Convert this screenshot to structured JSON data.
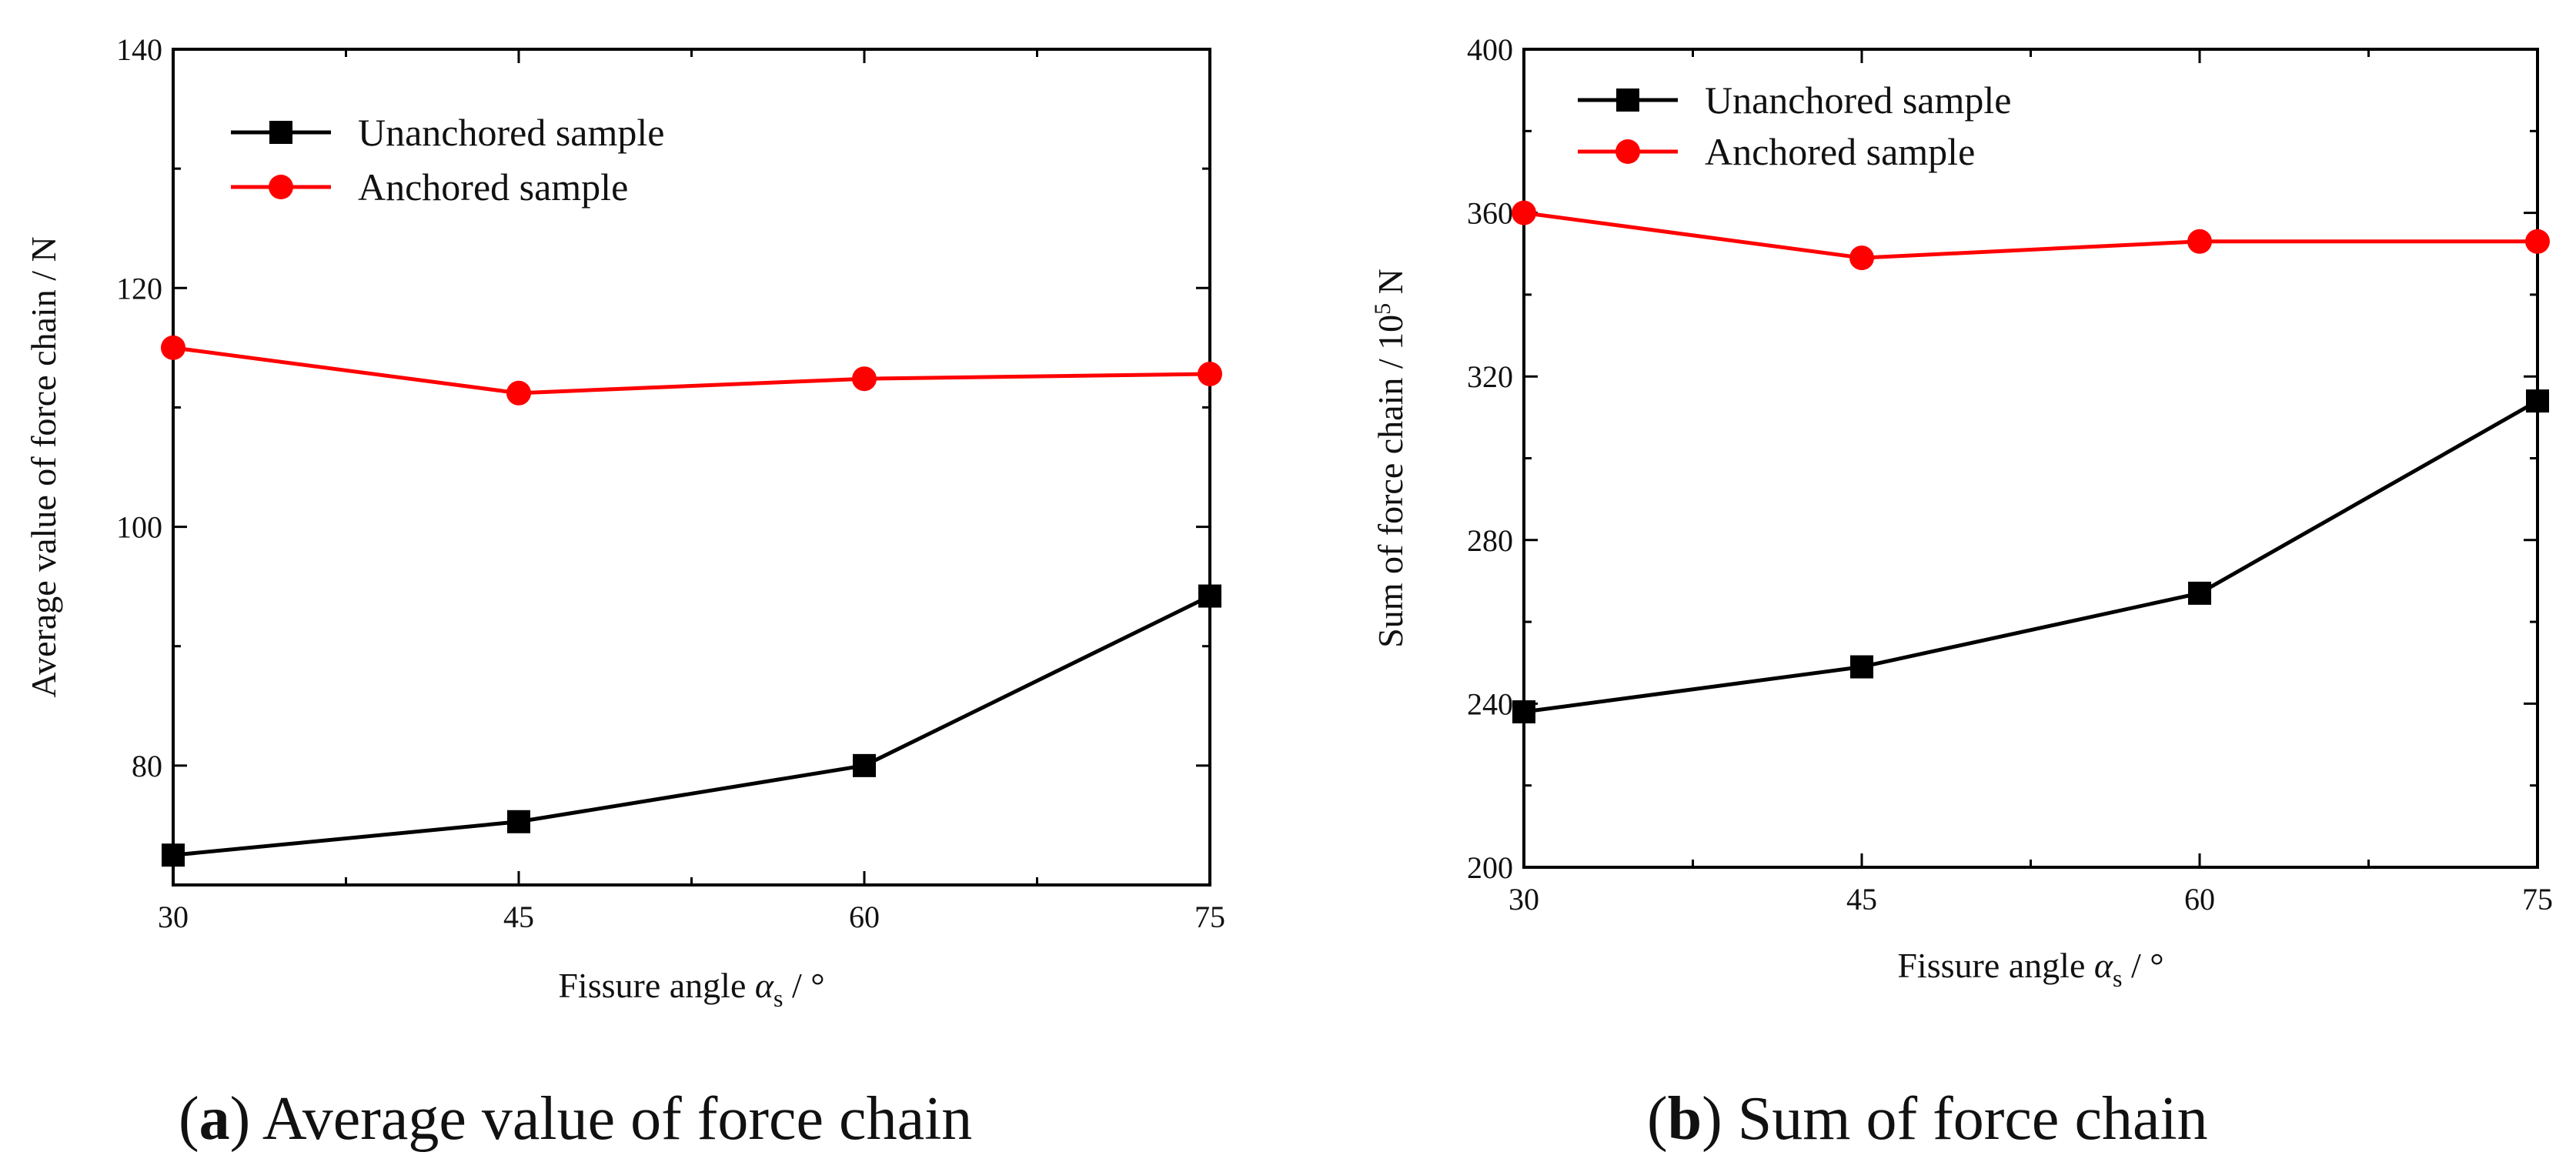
{
  "chart_data": [
    {
      "type": "line",
      "panel_id": "a",
      "x": [
        30,
        45,
        60,
        75
      ],
      "xlim": [
        30,
        75
      ],
      "ylim": [
        70,
        140
      ],
      "xticks": [
        "30",
        "45",
        "60",
        "75"
      ],
      "yticks": [
        "80",
        "100",
        "120",
        "140"
      ],
      "xlabel_prefix": "Fissure angle ",
      "xlabel_symbol": "α",
      "xlabel_subscript": "s",
      "xlabel_suffix": " / °",
      "ylabel": "Average value of force chain / N",
      "legend_position": "top-left",
      "series": [
        {
          "name": "Unanchored sample",
          "color": "#000000",
          "marker": "square",
          "values": [
            72.5,
            75.3,
            80.0,
            94.2
          ]
        },
        {
          "name": "Anchored sample",
          "color": "#ff0000",
          "marker": "circle",
          "values": [
            115.0,
            111.2,
            112.4,
            112.8
          ]
        }
      ],
      "caption_label": "a",
      "caption_text": "Average value of force chain"
    },
    {
      "type": "line",
      "panel_id": "b",
      "x": [
        30,
        45,
        60,
        75
      ],
      "xlim": [
        30,
        75
      ],
      "ylim": [
        200,
        400
      ],
      "xticks": [
        "30",
        "45",
        "60",
        "75"
      ],
      "yticks": [
        "200",
        "240",
        "280",
        "320",
        "360",
        "400"
      ],
      "xlabel_prefix": "Fissure angle ",
      "xlabel_symbol": "α",
      "xlabel_subscript": "s",
      "xlabel_suffix": " / °",
      "ylabel_prefix": "Sum of force chain  / 10",
      "ylabel_superscript": "5",
      "ylabel_suffix": " N",
      "legend_position": "top-left",
      "series": [
        {
          "name": "Unanchored sample",
          "color": "#000000",
          "marker": "square",
          "values": [
            238,
            249,
            267,
            314
          ]
        },
        {
          "name": "Anchored sample",
          "color": "#ff0000",
          "marker": "circle",
          "values": [
            360,
            349,
            353,
            353
          ]
        }
      ],
      "caption_label": "b",
      "caption_text": "Sum of force chain"
    }
  ]
}
